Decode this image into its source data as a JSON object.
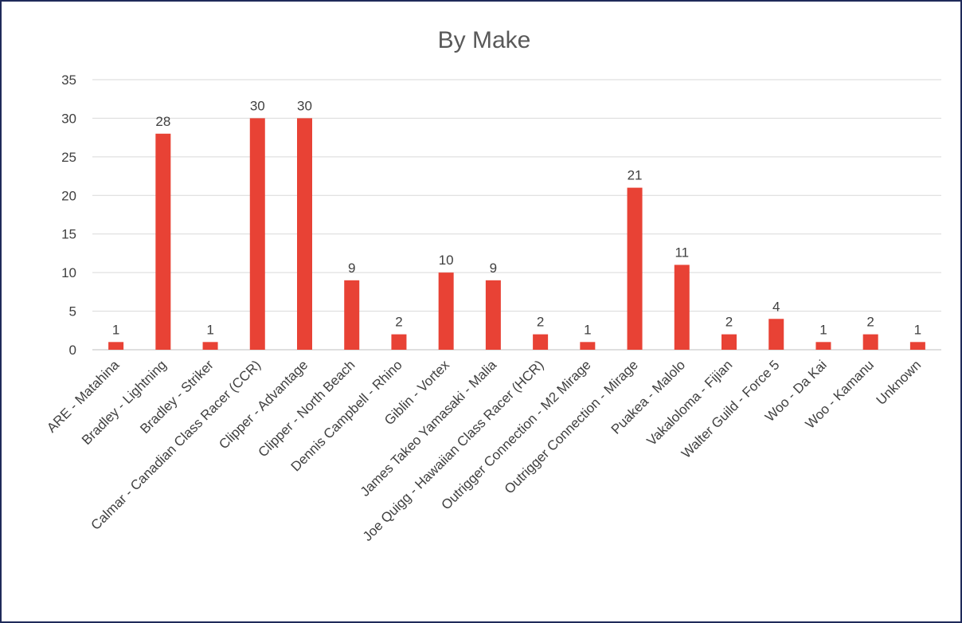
{
  "chart_data": {
    "type": "bar",
    "title": "By Make",
    "xlabel": "",
    "ylabel": "",
    "ylim": [
      0,
      35
    ],
    "yticks": [
      0,
      5,
      10,
      15,
      20,
      25,
      30,
      35
    ],
    "grid": true,
    "legend": "none",
    "bar_color": "#e84235",
    "categories": [
      "ARE - Matahina",
      "Bradley - Lightning",
      "Bradley - Striker",
      "Calmar - Canadian Class Racer (CCR)",
      "Clipper - Advantage",
      "Clipper - North Beach",
      "Dennis Campbell - Rhino",
      "Giblin - Vortex",
      "James Takeo Yamasaki - Malia",
      "Joe Quigg - Hawaiian Class Racer (HCR)",
      "Outrigger Connection - M2 Mirage",
      "Outrigger Connection - Mirage",
      "Puakea - Malolo",
      "Vakaloloma - Fijian",
      "Walter Guild - Force 5",
      "Woo - Da Kai",
      "Woo - Kamanu",
      "Unknown"
    ],
    "values": [
      1,
      28,
      1,
      30,
      30,
      9,
      2,
      10,
      9,
      2,
      1,
      21,
      11,
      2,
      4,
      1,
      2,
      1
    ]
  }
}
